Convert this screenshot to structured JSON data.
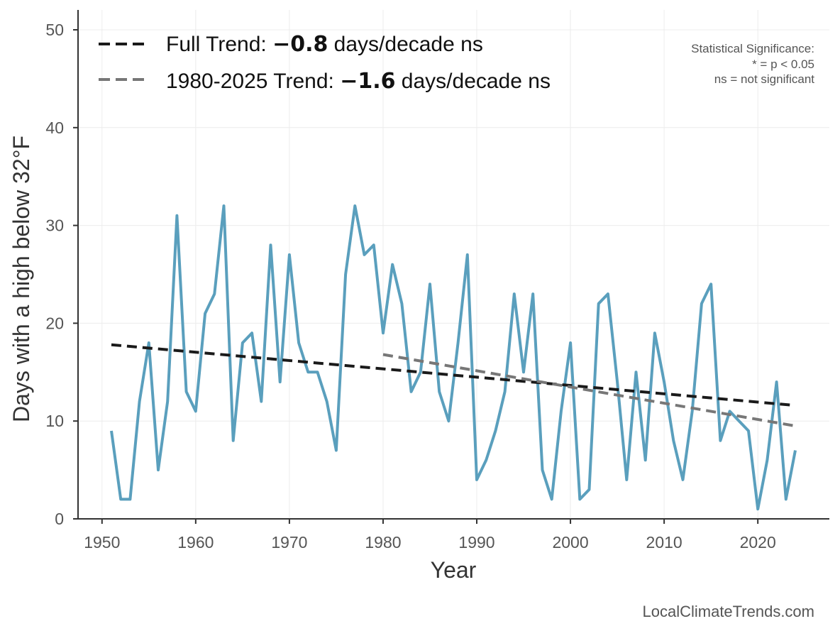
{
  "chart_data": {
    "type": "line",
    "xlabel": "Year",
    "ylabel": "Days with a high below 32°F",
    "xlim": [
      1947,
      2028
    ],
    "ylim": [
      0,
      52
    ],
    "xticks": [
      1950,
      1960,
      1970,
      1980,
      1990,
      2000,
      2010,
      2020
    ],
    "yticks": [
      0,
      10,
      20,
      30,
      40,
      50
    ],
    "grid": true,
    "legend_position": "top-left",
    "series": [
      {
        "color": "#5a9fbd",
        "x": [
          1951,
          1952,
          1953,
          1954,
          1955,
          1956,
          1957,
          1958,
          1959,
          1960,
          1961,
          1962,
          1963,
          1964,
          1965,
          1966,
          1967,
          1968,
          1969,
          1970,
          1971,
          1972,
          1973,
          1974,
          1975,
          1976,
          1977,
          1978,
          1979,
          1980,
          1981,
          1982,
          1983,
          1984,
          1985,
          1986,
          1987,
          1988,
          1989,
          1990,
          1991,
          1992,
          1993,
          1994,
          1995,
          1996,
          1997,
          1998,
          1999,
          2000,
          2001,
          2002,
          2003,
          2004,
          2005,
          2006,
          2007,
          2008,
          2009,
          2010,
          2011,
          2012,
          2013,
          2014,
          2015,
          2016,
          2017,
          2018,
          2019,
          2020,
          2021,
          2022,
          2023,
          2024
        ],
        "values": [
          9,
          2,
          2,
          12,
          18,
          5,
          12,
          31,
          13,
          11,
          21,
          23,
          32,
          8,
          18,
          19,
          12,
          28,
          14,
          27,
          18,
          15,
          15,
          12,
          7,
          25,
          32,
          27,
          28,
          19,
          26,
          22,
          13,
          15,
          24,
          13,
          10,
          18,
          27,
          4,
          6,
          9,
          13,
          23,
          15,
          23,
          5,
          2,
          11,
          18,
          2,
          3,
          22,
          23,
          14,
          4,
          15,
          6,
          19,
          14,
          8,
          4,
          11,
          22,
          24,
          8,
          11,
          10,
          9,
          1,
          6,
          14,
          2,
          7
        ]
      },
      {
        "name": "Full Trend",
        "color": "#1a1a1a",
        "dash": "dashed",
        "x": [
          1951,
          2024
        ],
        "values": [
          17.8,
          11.6
        ]
      },
      {
        "name": "1980-2025 Trend",
        "color": "#777777",
        "dash": "dashed",
        "x": [
          1980,
          2024
        ],
        "values": [
          16.8,
          9.5
        ]
      }
    ]
  },
  "legend": {
    "full": {
      "prefix": "Full Trend: ",
      "value": "−0.8",
      "suffix": " days/decade ns"
    },
    "recent": {
      "prefix": "1980-2025 Trend: ",
      "value": "−1.6",
      "suffix": " days/decade ns"
    }
  },
  "significance_note": [
    "Statistical Significance:",
    "* = p < 0.05",
    "ns = not significant"
  ],
  "credit": "LocalClimateTrends.com"
}
